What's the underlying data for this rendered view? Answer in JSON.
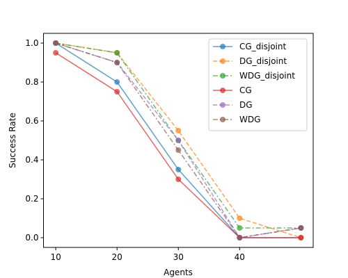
{
  "chart_data": {
    "type": "line",
    "title": "",
    "xlabel": "Agents",
    "ylabel": "Success Rate",
    "x": [
      10,
      20,
      30,
      40,
      50
    ],
    "xticks": [
      10,
      20,
      30,
      40
    ],
    "yticks": [
      0.0,
      0.2,
      0.4,
      0.6,
      0.8,
      1.0
    ],
    "ytick_labels": [
      "0.0",
      "0.2",
      "0.4",
      "0.6",
      "0.8",
      "1.0"
    ],
    "xlim": [
      8,
      52
    ],
    "ylim": [
      -0.05,
      1.05
    ],
    "grid": false,
    "legend_position": "top-right",
    "series": [
      {
        "name": "CG_disjoint",
        "values": [
          1.0,
          0.8,
          0.35,
          0.0,
          0.0
        ],
        "color": "#1f77b4",
        "dash": "solid"
      },
      {
        "name": "DG_disjoint",
        "values": [
          1.0,
          0.95,
          0.55,
          0.1,
          0.0
        ],
        "color": "#ff7f0e",
        "dash": "dashed"
      },
      {
        "name": "WDG_disjoint",
        "values": [
          1.0,
          0.95,
          0.5,
          0.05,
          0.05
        ],
        "color": "#2ca02c",
        "dash": "dashdot"
      },
      {
        "name": "CG",
        "values": [
          0.95,
          0.75,
          0.3,
          0.0,
          0.0
        ],
        "color": "#d62728",
        "dash": "solid"
      },
      {
        "name": "DG",
        "values": [
          1.0,
          0.9,
          0.5,
          0.0,
          0.05
        ],
        "color": "#9467bd",
        "dash": "dashed"
      },
      {
        "name": "WDG",
        "values": [
          1.0,
          0.9,
          0.45,
          0.0,
          0.05
        ],
        "color": "#8c564b",
        "dash": "dashdot"
      }
    ]
  }
}
